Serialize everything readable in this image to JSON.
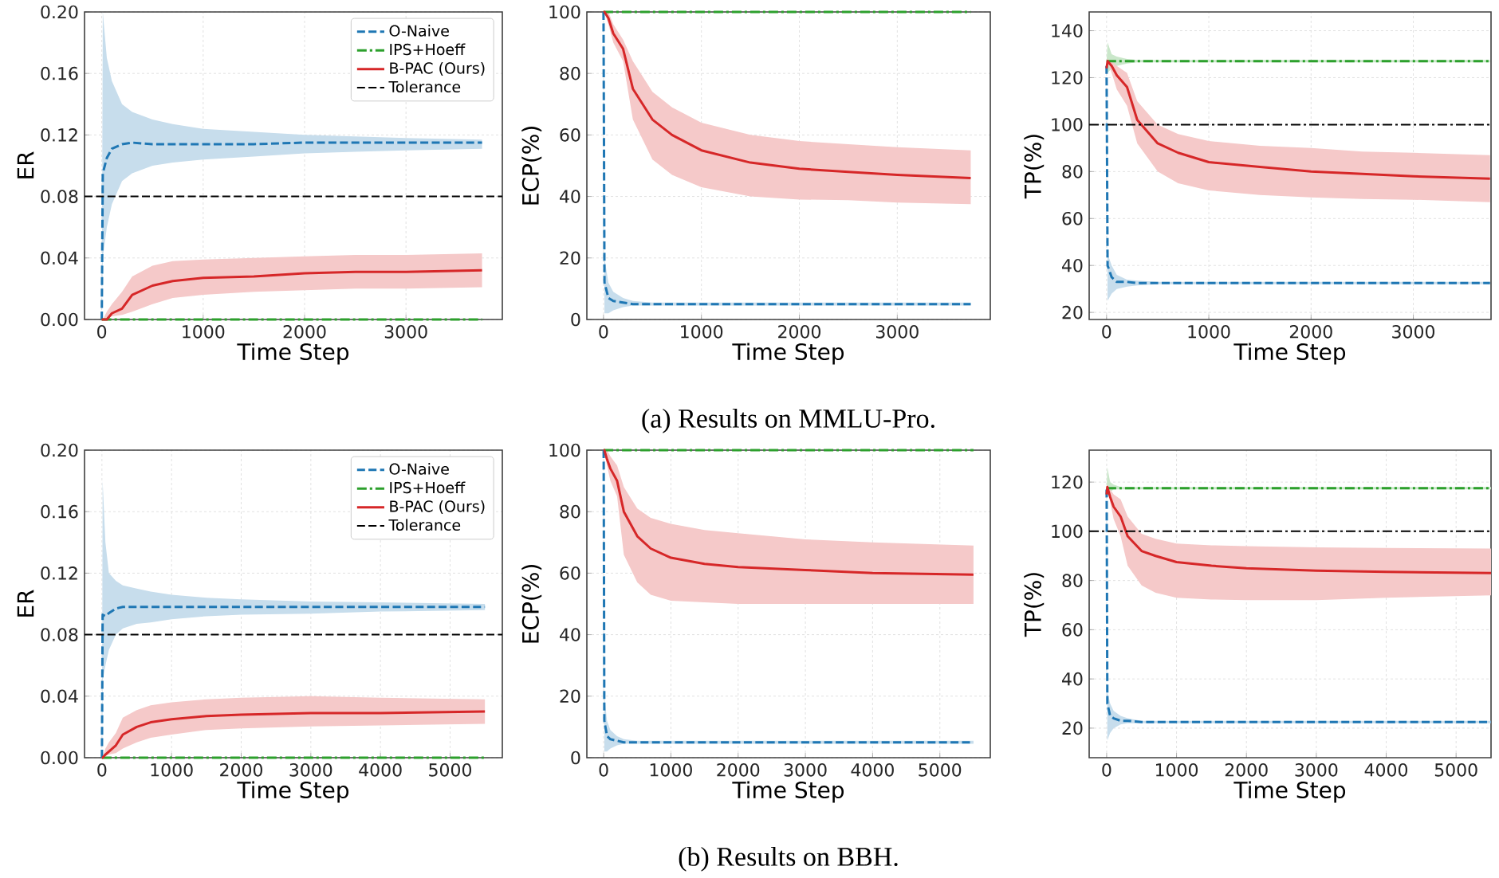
{
  "chart_data": [
    {
      "type": "line",
      "xlabel": "Time Step",
      "ylabel": "ER",
      "xlim": [
        -170,
        3950
      ],
      "xticks": [
        0,
        1000,
        2000,
        3000
      ],
      "ylim": [
        0,
        0.2
      ],
      "yticks": [
        {
          "value": 0,
          "label": "0.00"
        },
        {
          "value": 0.04,
          "label": "0.04"
        },
        {
          "value": 0.08,
          "label": "0.08"
        },
        {
          "value": 0.12,
          "label": "0.12"
        },
        {
          "value": 0.16,
          "label": "0.16"
        },
        {
          "value": 0.2,
          "label": "0.20"
        }
      ],
      "grid": true,
      "legend": "top right",
      "x": [
        0,
        10,
        50,
        100,
        200,
        300,
        500,
        700,
        1000,
        1500,
        2000,
        2500,
        3000,
        3750
      ],
      "series": [
        {
          "name": "O-Naive",
          "color": "#1f77b4",
          "line_style": "dashed",
          "values": [
            0,
            0.095,
            0.105,
            0.111,
            0.114,
            0.115,
            0.114,
            0.114,
            0.114,
            0.114,
            0.115,
            0.115,
            0.115,
            0.115
          ],
          "lower": [
            0,
            0.04,
            0.06,
            0.075,
            0.09,
            0.095,
            0.1,
            0.102,
            0.104,
            0.106,
            0.108,
            0.109,
            0.11,
            0.111
          ],
          "upper": [
            0,
            0.2,
            0.17,
            0.155,
            0.14,
            0.135,
            0.13,
            0.127,
            0.124,
            0.122,
            0.12,
            0.119,
            0.118,
            0.117
          ]
        },
        {
          "name": "IPS+Hoeff",
          "color": "#2ca02c",
          "line_style": "dashdot",
          "values": [
            0,
            0,
            0,
            0,
            0,
            0,
            0,
            0,
            0,
            0,
            0,
            0,
            0,
            0
          ]
        },
        {
          "name": "B-PAC (Ours)",
          "color": "#d62728",
          "line_style": "solid",
          "values": [
            0,
            0,
            0,
            0.004,
            0.007,
            0.016,
            0.022,
            0.025,
            0.027,
            0.028,
            0.03,
            0.031,
            0.031,
            0.032
          ],
          "lower": [
            0,
            0,
            0.001,
            0.002,
            0.003,
            0.005,
            0.01,
            0.014,
            0.016,
            0.018,
            0.019,
            0.02,
            0.02,
            0.021
          ],
          "upper": [
            0,
            0,
            0.005,
            0.01,
            0.018,
            0.028,
            0.035,
            0.038,
            0.039,
            0.04,
            0.041,
            0.042,
            0.042,
            0.043
          ]
        }
      ],
      "ref_lines": [
        {
          "axis": "y",
          "value": 0.08,
          "label": "Tolerance",
          "color": "#000000",
          "line_style": "dashed"
        }
      ]
    },
    {
      "type": "line",
      "xlabel": "Time Step",
      "ylabel": "ECP(%)",
      "xlim": [
        -170,
        3950
      ],
      "xticks": [
        0,
        1000,
        2000,
        3000
      ],
      "ylim": [
        0,
        100
      ],
      "yticks": [
        0,
        20,
        40,
        60,
        80,
        100
      ],
      "grid": true,
      "x": [
        0,
        10,
        50,
        100,
        200,
        300,
        500,
        700,
        1000,
        1500,
        2000,
        2500,
        3000,
        3750
      ],
      "series": [
        {
          "color": "#1f77b4",
          "line_style": "dashed",
          "values": [
            100,
            12,
            7,
            6,
            5.5,
            5,
            5,
            5,
            5,
            5,
            5,
            5,
            5,
            5
          ],
          "lower": [
            100,
            2,
            2,
            3,
            4,
            4.5,
            4.5,
            4.5,
            4.5,
            4.5,
            4.5,
            4.5,
            4.5,
            4.5
          ],
          "upper": [
            100,
            20,
            12,
            9,
            7,
            6,
            5.5,
            5.5,
            5.5,
            5.5,
            5.5,
            5.5,
            5.5,
            5.5
          ]
        },
        {
          "color": "#2ca02c",
          "line_style": "dashdot",
          "values": [
            100,
            100,
            100,
            100,
            100,
            100,
            100,
            100,
            100,
            100,
            100,
            100,
            100,
            100
          ]
        },
        {
          "color": "#d62728",
          "line_style": "solid",
          "values": [
            100,
            100,
            98,
            93,
            88,
            75,
            65,
            60,
            55,
            51,
            49,
            48,
            47,
            46
          ],
          "lower": [
            100,
            100,
            96,
            90,
            84,
            65,
            52,
            47,
            43,
            40,
            39,
            38.8,
            38,
            37.5
          ],
          "upper": [
            100,
            100,
            100,
            96,
            91,
            84,
            74,
            69,
            64,
            60,
            58,
            57,
            56,
            55
          ]
        }
      ],
      "annotations": [
        "(a) Results on MMLU-Pro."
      ]
    },
    {
      "type": "line",
      "xlabel": "Time Step",
      "ylabel": "TP(%)",
      "xlim": [
        -170,
        3760
      ],
      "xticks": [
        0,
        1000,
        2000,
        3000
      ],
      "ylim": [
        17,
        148
      ],
      "yticks": [
        20,
        40,
        60,
        80,
        100,
        120,
        140
      ],
      "grid": true,
      "x": [
        0,
        10,
        50,
        100,
        200,
        300,
        500,
        700,
        1000,
        1500,
        2000,
        2500,
        3000,
        3750
      ],
      "series": [
        {
          "color": "#1f77b4",
          "line_style": "dashed",
          "values": [
            125,
            40,
            35,
            33,
            33,
            32.5,
            32.5,
            32.5,
            32.5,
            32.5,
            32.5,
            32.5,
            32.5,
            32.5
          ],
          "lower": [
            125,
            25,
            28,
            30,
            31,
            31.5,
            32,
            32,
            32,
            32,
            32,
            32,
            32,
            32
          ],
          "upper": [
            125,
            45,
            40,
            36,
            34,
            33.5,
            33,
            33,
            33,
            33,
            33,
            33,
            33,
            33
          ]
        },
        {
          "color": "#2ca02c",
          "line_style": "dashdot",
          "values": [
            127,
            127,
            127,
            127,
            127,
            127,
            127,
            127,
            127,
            127,
            127,
            127,
            127,
            127
          ],
          "lower": [
            127,
            122,
            124,
            125,
            126,
            126.5,
            126.5,
            126.5,
            126.5,
            126.5,
            126.5,
            126.5,
            126.5,
            126.5
          ],
          "upper": [
            127,
            135,
            130,
            129,
            128,
            127.5,
            127.5,
            127.5,
            127.5,
            127.5,
            127.5,
            127.5,
            127.5,
            127.5
          ]
        },
        {
          "color": "#d62728",
          "line_style": "solid",
          "values": [
            124,
            127,
            125,
            121,
            116,
            102,
            92,
            88,
            84,
            82,
            80,
            79,
            78,
            77
          ],
          "lower": [
            124,
            127,
            122,
            115,
            108,
            92,
            80,
            75,
            72,
            70,
            69,
            68.3,
            68,
            67
          ],
          "upper": [
            124,
            128,
            127,
            125,
            122,
            110,
            100,
            96,
            93,
            91,
            90,
            88.5,
            88,
            87
          ]
        }
      ],
      "ref_lines": [
        {
          "axis": "y",
          "value": 100,
          "color": "#000000",
          "line_style": "dashdot"
        }
      ]
    },
    {
      "type": "line",
      "xlabel": "Time Step",
      "ylabel": "ER",
      "xlim": [
        -250,
        5750
      ],
      "xticks": [
        0,
        1000,
        2000,
        3000,
        4000,
        5000
      ],
      "ylim": [
        0,
        0.2
      ],
      "yticks": [
        {
          "value": 0,
          "label": "0.00"
        },
        {
          "value": 0.04,
          "label": "0.04"
        },
        {
          "value": 0.08,
          "label": "0.08"
        },
        {
          "value": 0.12,
          "label": "0.12"
        },
        {
          "value": 0.16,
          "label": "0.16"
        },
        {
          "value": 0.2,
          "label": "0.20"
        }
      ],
      "grid": true,
      "legend": "top right",
      "x": [
        0,
        10,
        50,
        100,
        200,
        300,
        500,
        700,
        1000,
        1500,
        2000,
        3000,
        4000,
        5500
      ],
      "series": [
        {
          "name": "O-Naive",
          "color": "#1f77b4",
          "line_style": "dashed",
          "values": [
            0,
            0.093,
            0.092,
            0.094,
            0.097,
            0.098,
            0.098,
            0.098,
            0.098,
            0.098,
            0.098,
            0.098,
            0.098,
            0.098
          ],
          "lower": [
            0,
            0.05,
            0.06,
            0.07,
            0.08,
            0.084,
            0.087,
            0.088,
            0.09,
            0.092,
            0.093,
            0.0937,
            0.095,
            0.096
          ],
          "upper": [
            0,
            0.18,
            0.14,
            0.12,
            0.115,
            0.112,
            0.11,
            0.108,
            0.106,
            0.104,
            0.103,
            0.1015,
            0.101,
            0.1
          ]
        },
        {
          "name": "IPS+Hoeff",
          "color": "#2ca02c",
          "line_style": "dashdot",
          "values": [
            0,
            0,
            0,
            0,
            0,
            0,
            0,
            0,
            0,
            0,
            0,
            0,
            0,
            0
          ]
        },
        {
          "name": "B-PAC (Ours)",
          "color": "#d62728",
          "line_style": "solid",
          "values": [
            0,
            0,
            0.002,
            0.004,
            0.008,
            0.015,
            0.02,
            0.023,
            0.025,
            0.027,
            0.028,
            0.029,
            0.029,
            0.03
          ],
          "lower": [
            0,
            0,
            0.001,
            0.002,
            0.003,
            0.006,
            0.01,
            0.013,
            0.015,
            0.018,
            0.019,
            0.0203,
            0.021,
            0.022
          ],
          "upper": [
            0,
            0,
            0.006,
            0.01,
            0.016,
            0.026,
            0.031,
            0.034,
            0.036,
            0.038,
            0.039,
            0.04,
            0.039,
            0.038
          ]
        }
      ],
      "ref_lines": [
        {
          "axis": "y",
          "value": 0.08,
          "label": "Tolerance",
          "color": "#000000",
          "line_style": "dashed"
        }
      ]
    },
    {
      "type": "line",
      "xlabel": "Time Step",
      "ylabel": "ECP(%)",
      "xlim": [
        -250,
        5750
      ],
      "xticks": [
        0,
        1000,
        2000,
        3000,
        4000,
        5000
      ],
      "ylim": [
        0,
        100
      ],
      "yticks": [
        0,
        20,
        40,
        60,
        80,
        100
      ],
      "grid": true,
      "x": [
        0,
        10,
        50,
        100,
        200,
        300,
        500,
        700,
        1000,
        1500,
        2000,
        3000,
        4000,
        5500
      ],
      "series": [
        {
          "color": "#1f77b4",
          "line_style": "dashed",
          "values": [
            100,
            12,
            7,
            6,
            5.5,
            5,
            5,
            5,
            5,
            5,
            5,
            5,
            5,
            5
          ],
          "lower": [
            100,
            2,
            2,
            3,
            4,
            4.5,
            4.5,
            4.5,
            4.5,
            4.5,
            4.5,
            4.5,
            4.5,
            4.5
          ],
          "upper": [
            100,
            20,
            12,
            9,
            7,
            6,
            5.5,
            5.5,
            5.5,
            5.5,
            5.5,
            5.5,
            5.5,
            5.5
          ]
        },
        {
          "color": "#2ca02c",
          "line_style": "dashdot",
          "values": [
            100,
            100,
            100,
            100,
            100,
            100,
            100,
            100,
            100,
            100,
            100,
            100,
            100,
            100
          ]
        },
        {
          "color": "#d62728",
          "line_style": "solid",
          "values": [
            100,
            100,
            97,
            94,
            90,
            80,
            72,
            68,
            65,
            63,
            62,
            61,
            60,
            59.5
          ],
          "lower": [
            100,
            100,
            95,
            90,
            85,
            66,
            57,
            53,
            51,
            50.5,
            50,
            50,
            50,
            50
          ],
          "upper": [
            100,
            100,
            100,
            98,
            95,
            88,
            81,
            78,
            76,
            74,
            73,
            71,
            70,
            69
          ]
        }
      ],
      "annotations": [
        "(b) Results on BBH."
      ]
    },
    {
      "type": "line",
      "xlabel": "Time Step",
      "ylabel": "TP(%)",
      "xlim": [
        -250,
        5500
      ],
      "xticks": [
        0,
        1000,
        2000,
        3000,
        4000,
        5000
      ],
      "ylim": [
        8,
        133
      ],
      "yticks": [
        20,
        40,
        60,
        80,
        100,
        120
      ],
      "grid": true,
      "x": [
        0,
        10,
        50,
        100,
        200,
        300,
        500,
        700,
        1000,
        1500,
        2000,
        3000,
        4000,
        5500
      ],
      "series": [
        {
          "color": "#1f77b4",
          "line_style": "dashed",
          "values": [
            117,
            30,
            25,
            24,
            23,
            23,
            22.5,
            22.5,
            22.5,
            22.5,
            22.5,
            22.5,
            22.5,
            22.5
          ],
          "lower": [
            117,
            15,
            18,
            20,
            21.5,
            22,
            22,
            22,
            22,
            22,
            22,
            22,
            22,
            22
          ],
          "upper": [
            117,
            35,
            30,
            27,
            25,
            24,
            23,
            23,
            23,
            23,
            23,
            23,
            23,
            23
          ]
        },
        {
          "color": "#2ca02c",
          "line_style": "dashdot",
          "values": [
            117.5,
            117.5,
            117.5,
            117.5,
            117.5,
            117.5,
            117.5,
            117.5,
            117.5,
            117.5,
            117.5,
            117.5,
            117.5,
            117.5
          ],
          "lower": [
            117.5,
            114,
            116,
            117,
            117,
            117,
            117,
            117,
            117,
            117,
            117,
            117,
            117,
            117
          ],
          "upper": [
            117.5,
            126,
            120,
            119,
            118,
            118,
            118,
            118,
            118,
            118,
            118,
            118,
            118,
            118
          ]
        },
        {
          "color": "#d62728",
          "line_style": "solid",
          "values": [
            115,
            118,
            114,
            110,
            106,
            98,
            92,
            90,
            87.5,
            86,
            85,
            84,
            83.5,
            83
          ],
          "lower": [
            115,
            118,
            112,
            105,
            98,
            86,
            78,
            75,
            73,
            72.3,
            72,
            72,
            73,
            74
          ],
          "upper": [
            115,
            119,
            117,
            115,
            113,
            106,
            99,
            97,
            95,
            94.3,
            94,
            93.5,
            93.2,
            93
          ]
        }
      ],
      "ref_lines": [
        {
          "axis": "y",
          "value": 100,
          "color": "#000000",
          "line_style": "dashdot"
        }
      ]
    }
  ]
}
